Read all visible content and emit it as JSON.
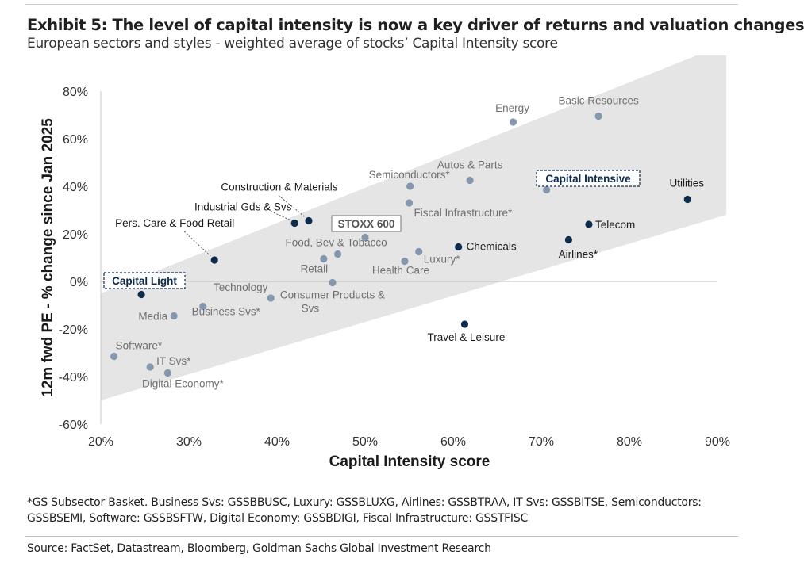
{
  "exhibit": {
    "title": "Exhibit 5: The level of capital intensity is now a key driver of returns and valuation changes",
    "subtitle": "European sectors and styles - weighted average of stocks’ Capital Intensity score",
    "footnote": "*GS Subsector Basket. Business Svs: GSSBBUSC, Luxury: GSSBLUXG, Airlines: GSSBTRAA, IT Svs: GSSBITSE, Semiconductors: GSSBSEMI, Software: GSSBSFTW, Digital Economy: GSSBDIGI, Fiscal Infrastructure: GSSTFISC",
    "source": "Source: FactSet, Datastream, Bloomberg, Goldman Sachs Global Investment Research"
  },
  "chart_data": {
    "type": "scatter",
    "xlabel": "Capital Intensity score",
    "ylabel": "12m fwd PE - % change since Jan 2025",
    "xlim": [
      20,
      90
    ],
    "ylim": [
      -60,
      80
    ],
    "x_ticks": [
      "20%",
      "30%",
      "40%",
      "50%",
      "60%",
      "70%",
      "80%",
      "90%"
    ],
    "y_ticks": [
      "80%",
      "60%",
      "40%",
      "20%",
      "0%",
      "-20%",
      "-40%",
      "-60%"
    ],
    "x_tick_values": [
      20,
      30,
      40,
      50,
      60,
      70,
      80,
      90
    ],
    "y_tick_values": [
      80,
      60,
      40,
      20,
      0,
      -20,
      -40,
      -60
    ],
    "colors": {
      "sector": "#8597ad",
      "style": "#0d2b4c",
      "band": "#e5e5e5",
      "label_sector": "#707070",
      "label_style": "#1a1a1a"
    },
    "band": {
      "lower": [
        [
          20,
          -50
        ],
        [
          91,
          28
        ]
      ],
      "upper": [
        [
          20,
          -5
        ],
        [
          91,
          100
        ]
      ]
    },
    "annotations": {
      "capital_light": "Capital Light",
      "capital_intensive": "Capital Intensive",
      "stoxx600": "STOXX 600"
    },
    "points": [
      {
        "name": "Energy",
        "x": 66.8,
        "y": 67,
        "kind": "sector"
      },
      {
        "name": "Basic Resources",
        "x": 76.5,
        "y": 69.5,
        "kind": "sector"
      },
      {
        "name": "Utilities",
        "x": 86.6,
        "y": 34.5,
        "kind": "style"
      },
      {
        "name": "Telecom",
        "x": 75.4,
        "y": 24,
        "kind": "style"
      },
      {
        "name": "Airlines*",
        "x": 73.1,
        "y": 17.5,
        "kind": "style"
      },
      {
        "name": "Capital Intensive",
        "x": 70.6,
        "y": 38.5,
        "kind": "sector"
      },
      {
        "name": "Autos & Parts",
        "x": 61.9,
        "y": 42.5,
        "kind": "sector"
      },
      {
        "name": "Semiconductors*",
        "x": 55.1,
        "y": 40,
        "kind": "sector"
      },
      {
        "name": "Fiscal Infrastructure*",
        "x": 55,
        "y": 33,
        "kind": "sector"
      },
      {
        "name": "Chemicals",
        "x": 60.6,
        "y": 14.5,
        "kind": "style"
      },
      {
        "name": "Luxury*",
        "x": 56.1,
        "y": 12.5,
        "kind": "sector"
      },
      {
        "name": "Health Care",
        "x": 54.5,
        "y": 8.5,
        "kind": "sector"
      },
      {
        "name": "STOXX 600",
        "x": 50,
        "y": 18.5,
        "kind": "sector"
      },
      {
        "name": "Food, Bev & Tobacco",
        "x": 46.9,
        "y": 11.5,
        "kind": "sector"
      },
      {
        "name": "Retail",
        "x": 45.3,
        "y": 9.5,
        "kind": "sector"
      },
      {
        "name": "Consumer Products & Svs",
        "x": 46.3,
        "y": -0.5,
        "kind": "sector"
      },
      {
        "name": "Construction & Materials",
        "x": 43.6,
        "y": 25.5,
        "kind": "style"
      },
      {
        "name": "Industrial Gds & Svs",
        "x": 42,
        "y": 24.5,
        "kind": "style"
      },
      {
        "name": "Pers. Care & Food Retail",
        "x": 32.9,
        "y": 9,
        "kind": "style"
      },
      {
        "name": "Technology",
        "x": 39.3,
        "y": -7,
        "kind": "sector"
      },
      {
        "name": "Travel & Leisure",
        "x": 61.3,
        "y": -18,
        "kind": "style"
      },
      {
        "name": "Capital Light",
        "x": 24.6,
        "y": -5.5,
        "kind": "style"
      },
      {
        "name": "Business Svs*",
        "x": 31.6,
        "y": -10.5,
        "kind": "sector"
      },
      {
        "name": "Media",
        "x": 28.3,
        "y": -14.5,
        "kind": "sector"
      },
      {
        "name": "Software*",
        "x": 21.5,
        "y": -31.5,
        "kind": "sector"
      },
      {
        "name": "IT Svs*",
        "x": 25.6,
        "y": -36,
        "kind": "sector"
      },
      {
        "name": "Digital Economy*",
        "x": 27.6,
        "y": -38.5,
        "kind": "sector"
      }
    ]
  }
}
